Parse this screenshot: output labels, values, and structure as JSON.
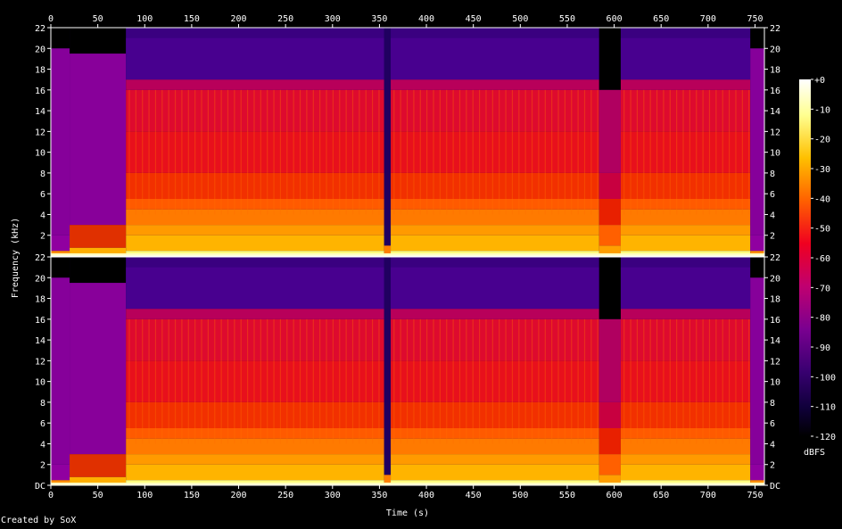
{
  "credit": "Created by SoX",
  "chart_data": {
    "type": "heatmap",
    "xlabel": "Time (s)",
    "ylabel": "Frequency (kHz)",
    "colorbar_label": "dBFS",
    "xlim": [
      0,
      760
    ],
    "ylim": [
      0,
      22
    ],
    "x_ticks": [
      "0",
      "50",
      "100",
      "150",
      "200",
      "250",
      "300",
      "350",
      "400",
      "450",
      "500",
      "550",
      "600",
      "650",
      "700",
      "750"
    ],
    "x_tick_values": [
      0,
      50,
      100,
      150,
      200,
      250,
      300,
      350,
      400,
      450,
      500,
      550,
      600,
      650,
      700,
      750
    ],
    "y_ticks": [
      "DC",
      "2",
      "4",
      "6",
      "8",
      "10",
      "12",
      "14",
      "16",
      "18",
      "20",
      "22"
    ],
    "y_tick_values": [
      0,
      2,
      4,
      6,
      8,
      10,
      12,
      14,
      16,
      18,
      20,
      22
    ],
    "colorbar_ticks": [
      "+0",
      "-10",
      "-20",
      "-30",
      "-40",
      "-50",
      "-60",
      "-70",
      "-80",
      "-90",
      "-100",
      "-110",
      "-120"
    ],
    "colorbar_values": [
      0,
      -10,
      -20,
      -30,
      -40,
      -50,
      -60,
      -70,
      -80,
      -90,
      -100,
      -110,
      -120
    ],
    "channels": 2,
    "segments": [
      {
        "t0": 0,
        "t1": 20,
        "cutoff_khz": 20,
        "level": "low"
      },
      {
        "t0": 20,
        "t1": 80,
        "cutoff_khz": 19.5,
        "level": "low-with-band"
      },
      {
        "t0": 80,
        "t1": 355,
        "cutoff_khz": 17,
        "level": "high"
      },
      {
        "t0": 355,
        "t1": 362,
        "cutoff_khz": 1,
        "level": "gap"
      },
      {
        "t0": 362,
        "t1": 584,
        "cutoff_khz": 17,
        "level": "high"
      },
      {
        "t0": 584,
        "t1": 607,
        "cutoff_khz": 16,
        "level": "medium"
      },
      {
        "t0": 607,
        "t1": 745,
        "cutoff_khz": 17,
        "level": "high"
      },
      {
        "t0": 745,
        "t1": 760,
        "cutoff_khz": 20,
        "level": "low"
      }
    ],
    "grid": false
  }
}
